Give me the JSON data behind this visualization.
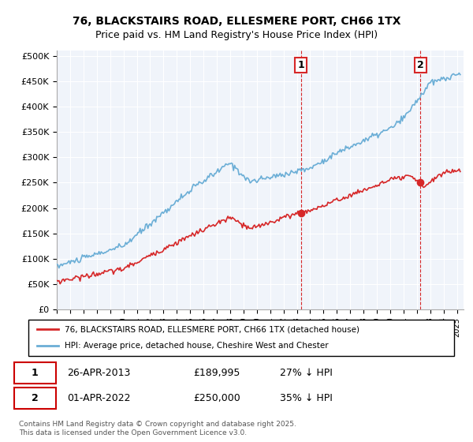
{
  "title_line1": "76, BLACKSTAIRS ROAD, ELLESMERE PORT, CH66 1TX",
  "title_line2": "Price paid vs. HM Land Registry's House Price Index (HPI)",
  "ylabel_ticks": [
    "£0",
    "£50K",
    "£100K",
    "£150K",
    "£200K",
    "£250K",
    "£300K",
    "£350K",
    "£400K",
    "£450K",
    "£500K"
  ],
  "ytick_values": [
    0,
    50000,
    100000,
    150000,
    200000,
    250000,
    300000,
    350000,
    400000,
    450000,
    500000
  ],
  "ylim": [
    0,
    510000
  ],
  "xlim_start": 1995.0,
  "xlim_end": 2025.5,
  "hpi_color": "#6baed6",
  "price_color": "#d62728",
  "annotation_color_box": "#d62728",
  "background_color": "#f0f4fa",
  "grid_color": "#ffffff",
  "ann1_x": 2013.32,
  "ann1_y": 189995,
  "ann2_x": 2022.25,
  "ann2_y": 250000,
  "legend_line1": "76, BLACKSTAIRS ROAD, ELLESMERE PORT, CH66 1TX (detached house)",
  "legend_line2": "HPI: Average price, detached house, Cheshire West and Chester",
  "footnote": "Contains HM Land Registry data © Crown copyright and database right 2025.\nThis data is licensed under the Open Government Licence v3.0.",
  "table_row1": [
    "1",
    "26-APR-2013",
    "£189,995",
    "27% ↓ HPI"
  ],
  "table_row2": [
    "2",
    "01-APR-2022",
    "£250,000",
    "35% ↓ HPI"
  ],
  "vline1_x": 2013.32,
  "vline2_x": 2022.25,
  "vline_color": "#d62728"
}
